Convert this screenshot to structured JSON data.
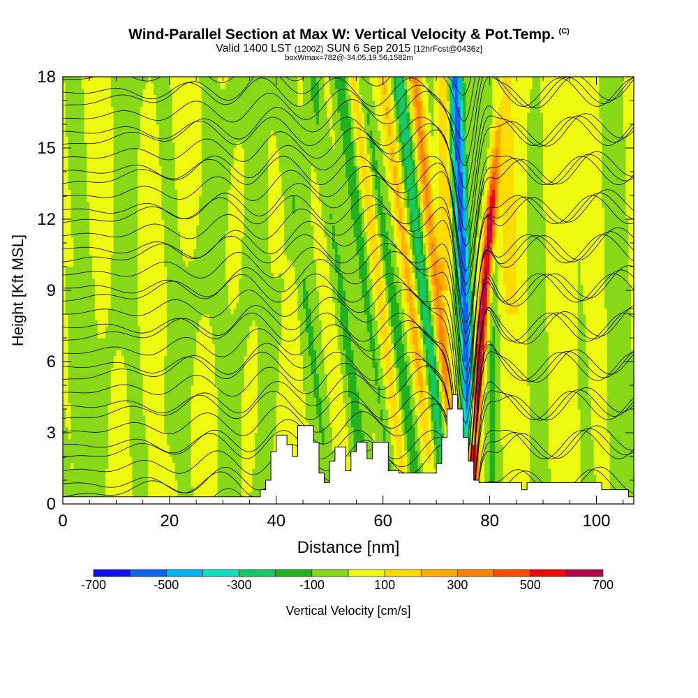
{
  "header": {
    "title": "Wind-Parallel Section at Max W: Vertical Velocity & Pot.Temp.",
    "copyright": "(C)",
    "valid_a": "Valid 1400 LST",
    "valid_b": "(1200Z)",
    "valid_c": "SUN 6 Sep 2015",
    "valid_d": "[12hrFcst@0436z]",
    "boxinfo": "boxWmax=782@-34.05,19.56,1582m"
  },
  "chart_data": {
    "type": "heatmap",
    "xlabel": "Distance [nm]",
    "ylabel": "Height [Kft MSL]",
    "xlim": [
      0,
      107
    ],
    "ylim": [
      0,
      18
    ],
    "xticks": [
      0,
      20,
      40,
      60,
      80,
      100
    ],
    "yticks": [
      0,
      3,
      6,
      9,
      12,
      15,
      18
    ],
    "colorbar": {
      "label": "Vertical Velocity [cm/s]",
      "ticks": [
        -700,
        -500,
        -300,
        -100,
        100,
        300,
        500,
        700
      ],
      "bins": [
        {
          "from": -700,
          "to": -600,
          "color": "#1010ee"
        },
        {
          "from": -600,
          "to": -500,
          "color": "#0a64f0"
        },
        {
          "from": -500,
          "to": -400,
          "color": "#00b4f5"
        },
        {
          "from": -400,
          "to": -300,
          "color": "#10e0c0"
        },
        {
          "from": -300,
          "to": -200,
          "color": "#18c864"
        },
        {
          "from": -200,
          "to": -100,
          "color": "#22b21e"
        },
        {
          "from": -100,
          "to": 0,
          "color": "#88d818"
        },
        {
          "from": 0,
          "to": 100,
          "color": "#eefa10"
        },
        {
          "from": 100,
          "to": 200,
          "color": "#fedb00"
        },
        {
          "from": 200,
          "to": 300,
          "color": "#ffae00"
        },
        {
          "from": 300,
          "to": 400,
          "color": "#ff8200"
        },
        {
          "from": 400,
          "to": 500,
          "color": "#ff4e00"
        },
        {
          "from": 500,
          "to": 600,
          "color": "#ee0808"
        },
        {
          "from": 600,
          "to": 700,
          "color": "#b4084a"
        }
      ]
    },
    "max_w": 782,
    "terrain": [
      [
        0,
        0.3
      ],
      [
        36,
        0.3
      ],
      [
        37,
        0.6
      ],
      [
        38,
        1.0
      ],
      [
        39,
        2.2
      ],
      [
        40,
        2.9
      ],
      [
        42,
        2.5
      ],
      [
        43,
        2.0
      ],
      [
        44,
        3.3
      ],
      [
        46,
        3.3
      ],
      [
        47,
        2.6
      ],
      [
        48,
        1.3
      ],
      [
        49,
        0.9
      ],
      [
        50,
        1.8
      ],
      [
        51,
        2.4
      ],
      [
        53,
        1.4
      ],
      [
        54,
        2.2
      ],
      [
        55,
        2.6
      ],
      [
        57,
        1.9
      ],
      [
        58,
        2.6
      ],
      [
        60,
        2.6
      ],
      [
        61,
        1.4
      ],
      [
        63,
        1.3
      ],
      [
        69,
        1.3
      ],
      [
        70,
        1.7
      ],
      [
        71,
        2.8
      ],
      [
        72,
        4.0
      ],
      [
        73,
        4.6
      ],
      [
        74,
        4.0
      ],
      [
        75,
        2.8
      ],
      [
        76,
        1.8
      ],
      [
        77,
        1.0
      ],
      [
        78,
        0.9
      ],
      [
        80,
        0.9
      ],
      [
        84,
        0.9
      ],
      [
        86,
        0.6
      ],
      [
        87,
        0.9
      ],
      [
        100,
        0.9
      ],
      [
        101,
        0.6
      ],
      [
        105,
        0.6
      ],
      [
        106,
        0.3
      ],
      [
        107,
        0.3
      ]
    ]
  }
}
